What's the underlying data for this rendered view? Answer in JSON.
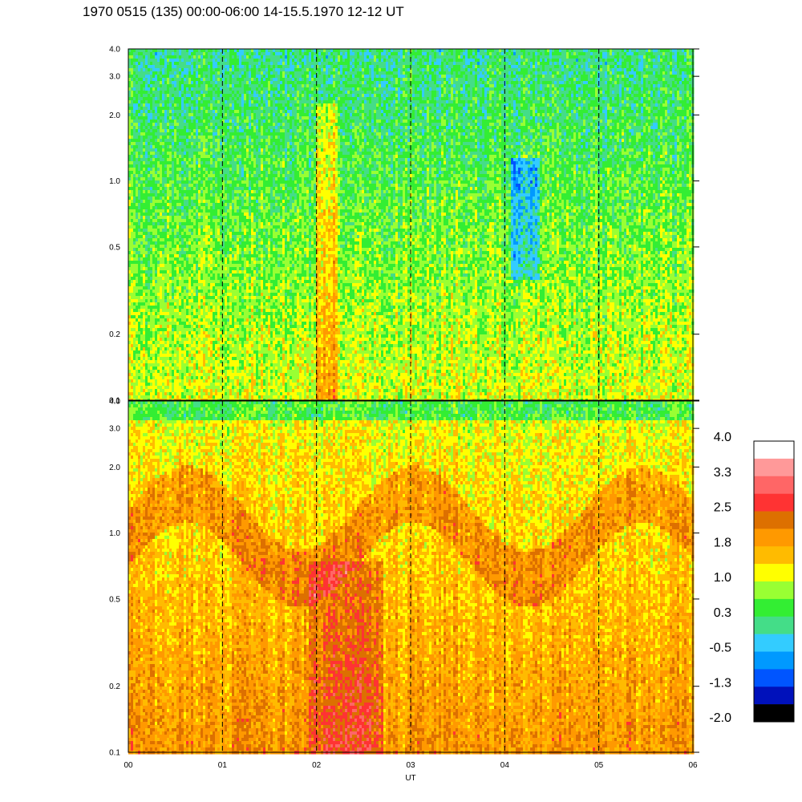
{
  "title": "1970 0515 (135) 00:00-06:00 14-15.5.1970  12-12 UT",
  "chart_data": [
    {
      "type": "heatmap",
      "panel": "upper",
      "x_range": [
        0,
        6
      ],
      "x_unit": "hours UT",
      "y_scale": "log",
      "y_range": [
        0.1,
        4.0
      ],
      "y_ticks": [
        {
          "value": 0.1,
          "label": "0.1"
        },
        {
          "value": 0.2,
          "label": "0.2"
        },
        {
          "value": 0.5,
          "label": "0.5"
        },
        {
          "value": 1.0,
          "label": "1.0"
        },
        {
          "value": 2.0,
          "label": "2.0"
        },
        {
          "value": 3.0,
          "label": "3.0"
        },
        {
          "value": 4.0,
          "label": "4.0"
        }
      ],
      "base_level_range": [
        0.0,
        1.1
      ],
      "hour_markers": [
        1,
        2,
        3,
        4,
        5
      ]
    },
    {
      "type": "heatmap",
      "panel": "lower",
      "x_range": [
        0,
        6
      ],
      "x_unit": "hours UT",
      "y_scale": "log",
      "y_range": [
        0.1,
        4.0
      ],
      "y_ticks": [
        {
          "value": 0.1,
          "label": "0.1"
        },
        {
          "value": 0.2,
          "label": "0.2"
        },
        {
          "value": 0.5,
          "label": "0.5"
        },
        {
          "value": 1.0,
          "label": "1.0"
        },
        {
          "value": 2.0,
          "label": "2.0"
        },
        {
          "value": 3.0,
          "label": "3.0"
        },
        {
          "value": 4.0,
          "label": "4.0"
        }
      ],
      "base_level_range": [
        0.9,
        2.2
      ],
      "hour_markers": [
        1,
        2,
        3,
        4,
        5
      ]
    }
  ],
  "x_axis": {
    "label": "UT",
    "ticks": [
      "00",
      "01",
      "02",
      "03",
      "04",
      "05",
      "06"
    ]
  },
  "colorbar": {
    "labels": [
      "4.0",
      "3.3",
      "2.5",
      "1.8",
      "1.0",
      "0.3",
      "-0.5",
      "-1.3",
      "-2.0"
    ],
    "colors_top_to_bottom": [
      "#ffffff",
      "#ff9999",
      "#ff6666",
      "#ff3333",
      "#dd7000",
      "#ff9900",
      "#ffbb00",
      "#ffff00",
      "#99ff33",
      "#33ee33",
      "#44dd88",
      "#33ccff",
      "#0099ff",
      "#0055ff",
      "#0011bb",
      "#000000"
    ]
  }
}
